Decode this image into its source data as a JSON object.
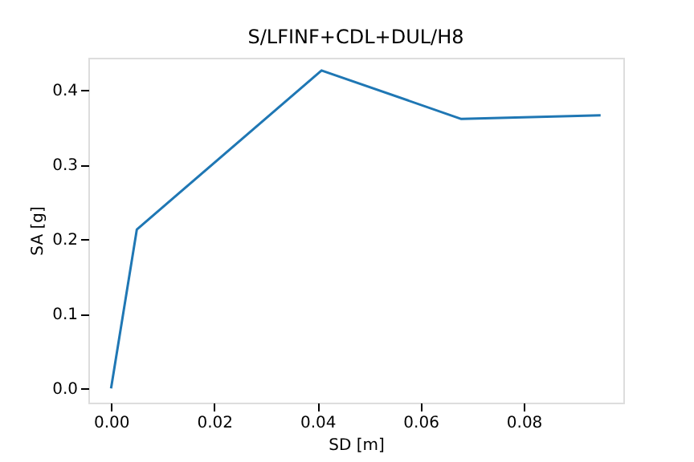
{
  "chart_data": {
    "type": "line",
    "title": "S/LFINF+CDL+DUL/H8",
    "xlabel": "SD [m]",
    "ylabel": "SA [g]",
    "x": [
      0,
      0.005,
      0.0408,
      0.0679,
      0.0949
    ],
    "series": [
      {
        "color": "#1f77b4",
        "values": [
          0,
          0.213,
          0.426,
          0.361,
          0.366
        ]
      }
    ],
    "xlim": [
      -0.0044,
      0.0993
    ],
    "ylim": [
      -0.019,
      0.443
    ],
    "xticks": [
      {
        "value": 0,
        "label": "0.00"
      },
      {
        "value": 0.02,
        "label": "0.02"
      },
      {
        "value": 0.04,
        "label": "0.04"
      },
      {
        "value": 0.06,
        "label": "0.06"
      },
      {
        "value": 0.08,
        "label": "0.08"
      }
    ],
    "yticks": [
      {
        "value": 0,
        "label": "0.0"
      },
      {
        "value": 0.1,
        "label": "0.1"
      },
      {
        "value": 0.2,
        "label": "0.2"
      },
      {
        "value": 0.3,
        "label": "0.3"
      },
      {
        "value": 0.4,
        "label": "0.4"
      }
    ],
    "grid": false,
    "marker": "none",
    "line_style": "solid"
  }
}
